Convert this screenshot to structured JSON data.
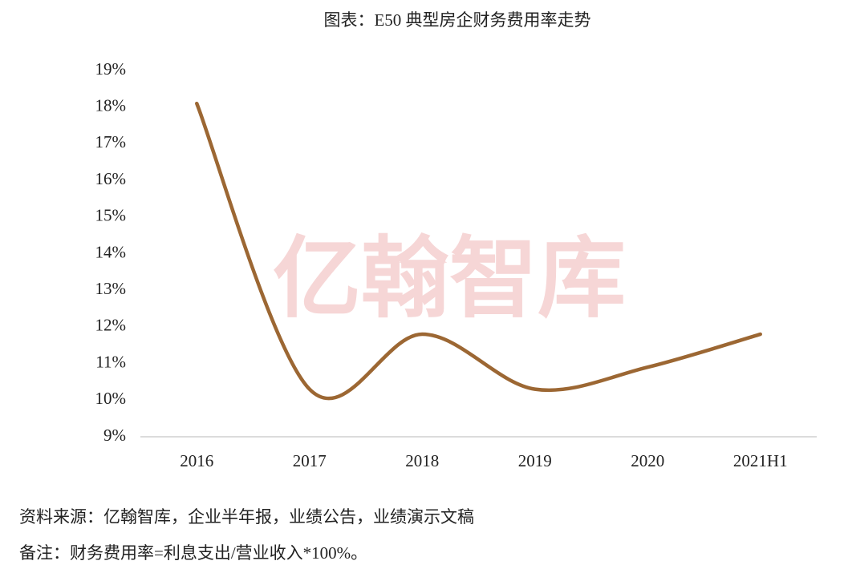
{
  "chart_data": {
    "type": "line",
    "title": "图表：E50 典型房企财务费用率走势",
    "watermark": "亿翰智库",
    "categories": [
      "2016",
      "2017",
      "2018",
      "2019",
      "2020",
      "2021H1"
    ],
    "series": [
      {
        "name": "财务费用率",
        "color": "#9c6733",
        "values": [
          18.1,
          10.3,
          11.8,
          10.3,
          10.9,
          11.8
        ]
      }
    ],
    "ylim": [
      9,
      19
    ],
    "yticks": [
      {
        "value": 9,
        "label": "9%"
      },
      {
        "value": 10,
        "label": "10%"
      },
      {
        "value": 11,
        "label": "11%"
      },
      {
        "value": 12,
        "label": "12%"
      },
      {
        "value": 13,
        "label": "13%"
      },
      {
        "value": 14,
        "label": "14%"
      },
      {
        "value": 15,
        "label": "15%"
      },
      {
        "value": 16,
        "label": "16%"
      },
      {
        "value": 17,
        "label": "17%"
      },
      {
        "value": 18,
        "label": "18%"
      },
      {
        "value": 19,
        "label": "19%"
      }
    ],
    "source": "资料来源：亿翰智库，企业半年报，业绩公告，业绩演示文稿",
    "note": "备注：财务费用率=利息支出/营业收入*100%。"
  }
}
